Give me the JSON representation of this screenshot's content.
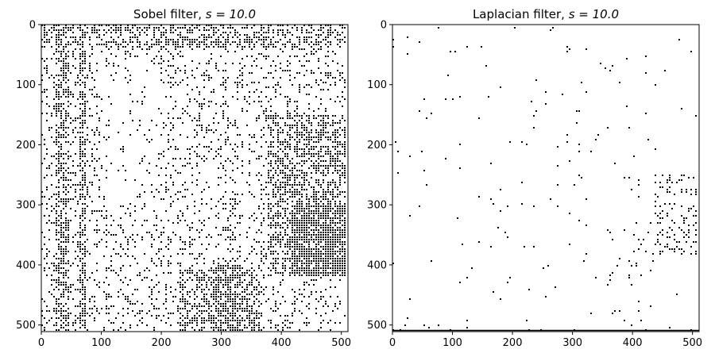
{
  "figure": {
    "background": "#ffffff",
    "ink": "#000000"
  },
  "chart_data": [
    {
      "type": "heatmap",
      "colormap": "binary (black = edge pixel, white = background)",
      "title_prefix": "Sobel filter, ",
      "title_math": "s = 10.0",
      "xlabel": "",
      "ylabel": "",
      "xlim": [
        0,
        511
      ],
      "ylim": [
        511,
        0
      ],
      "image_size": [
        512,
        512
      ],
      "xticks": [
        0,
        100,
        200,
        300,
        400,
        500
      ],
      "yticks": [
        0,
        100,
        200,
        300,
        400,
        500
      ],
      "grid": false,
      "texture": "dense edge map with vertical stripes near left, textured central region, very dense bottom-right corner"
    },
    {
      "type": "heatmap",
      "colormap": "binary (black = edge pixel, white = background)",
      "title_prefix": "Laplacian filter, ",
      "title_math": "s = 10.0",
      "xlabel": "",
      "ylabel": "",
      "xlim": [
        0,
        511
      ],
      "ylim": [
        511,
        0
      ],
      "image_size": [
        512,
        512
      ],
      "xticks": [
        0,
        100,
        200,
        300,
        400,
        500
      ],
      "yticks": [
        0,
        100,
        200,
        300,
        400,
        500
      ],
      "grid": false,
      "texture": "sparse isolated edge pixels, cluster at right edge around rows 250-400"
    }
  ]
}
